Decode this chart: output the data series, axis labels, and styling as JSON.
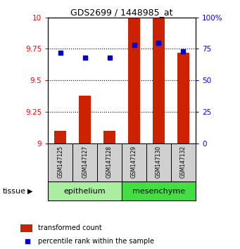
{
  "title": "GDS2699 / 1448985_at",
  "samples": [
    "GSM147125",
    "GSM147127",
    "GSM147128",
    "GSM147129",
    "GSM147130",
    "GSM147132"
  ],
  "bar_values": [
    9.1,
    9.38,
    9.1,
    10.0,
    10.0,
    9.72
  ],
  "dot_values": [
    72,
    68,
    68,
    78,
    80,
    73
  ],
  "bar_color": "#CC2200",
  "dot_color": "#0000CC",
  "ymin": 9.0,
  "ymax": 10.0,
  "yticks": [
    9.0,
    9.25,
    9.5,
    9.75,
    10.0
  ],
  "ytick_labels": [
    "9",
    "9.25",
    "9.5",
    "9.75",
    "10"
  ],
  "y2min": 0,
  "y2max": 100,
  "y2ticks": [
    0,
    25,
    50,
    75,
    100
  ],
  "y2tick_labels": [
    "0",
    "25",
    "50",
    "75",
    "100%"
  ],
  "epithelium_color": "#AAEEA0",
  "mesenchyme_color": "#44DD44",
  "sample_box_color": "#D0D0D0",
  "legend_items": [
    "transformed count",
    "percentile rank within the sample"
  ],
  "tissue_label": "tissue"
}
